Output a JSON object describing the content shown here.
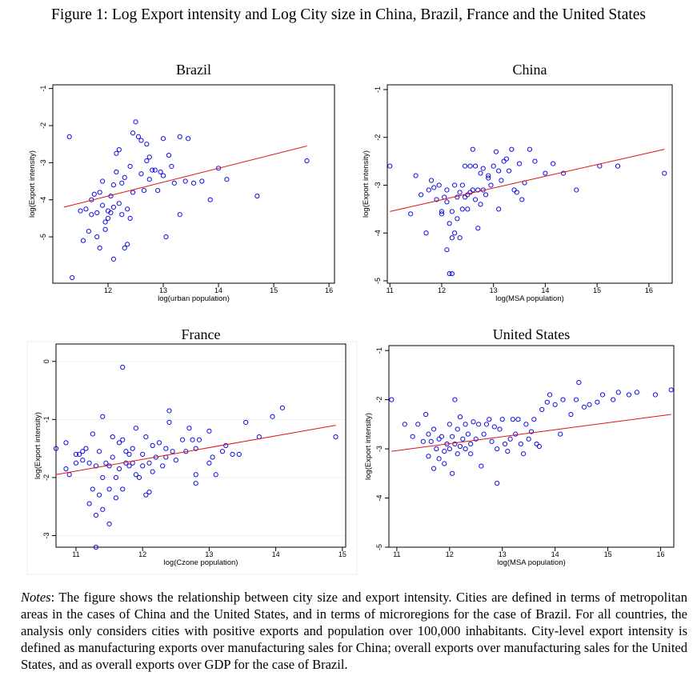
{
  "figure": {
    "title": "Figure 1: Log Export intensity and Log City size in China, Brazil, France and the United States",
    "notes_label": "Notes",
    "notes_text": ": The figure shows the relationship between city size and export intensity. Cities are defined in terms of metropolitan areas in the cases of China and the United States, and in terms of microregions for the case of Brazil. For all countries, the analysis only considers cities with positive exports and population over 100,000 inhabitants. City-level export intensity is defined as manufacturing exports over manufacturing sales for China; overall exports over manufacturing sales for the United States, and as overall exports over GDP for the case of Brazil."
  },
  "colors": {
    "points": "#1010e0",
    "fit_line": "#e01010",
    "frame": "#000000",
    "grid": "#eaf0f0"
  },
  "chart_data": [
    {
      "type": "scatter",
      "title": "Brazil",
      "xlabel": "log(urban population)",
      "ylabel": "log(Export intensity)",
      "xlim": [
        11.0,
        16.1
      ],
      "ylim": [
        -6.25,
        -0.9
      ],
      "xticks": [
        12,
        13,
        14,
        15,
        16
      ],
      "yticks": [
        -1,
        -2,
        -3,
        -4,
        -5
      ],
      "fit_line": {
        "x": [
          11.2,
          15.6
        ],
        "y": [
          -4.2,
          -2.55
        ]
      },
      "points": [
        [
          11.3,
          -2.3
        ],
        [
          11.35,
          -6.1
        ],
        [
          11.5,
          -4.3
        ],
        [
          11.55,
          -5.1
        ],
        [
          11.6,
          -4.25
        ],
        [
          11.65,
          -4.85
        ],
        [
          11.7,
          -4.0
        ],
        [
          11.7,
          -4.4
        ],
        [
          11.75,
          -3.85
        ],
        [
          11.8,
          -4.35
        ],
        [
          11.8,
          -5.0
        ],
        [
          11.85,
          -3.8
        ],
        [
          11.85,
          -5.3
        ],
        [
          11.9,
          -3.5
        ],
        [
          11.9,
          -4.15
        ],
        [
          11.95,
          -4.6
        ],
        [
          11.95,
          -4.8
        ],
        [
          12.0,
          -4.3
        ],
        [
          12.0,
          -4.5
        ],
        [
          12.05,
          -3.9
        ],
        [
          12.05,
          -4.35
        ],
        [
          12.1,
          -3.6
        ],
        [
          12.1,
          -4.2
        ],
        [
          12.1,
          -5.6
        ],
        [
          12.15,
          -2.75
        ],
        [
          12.15,
          -3.25
        ],
        [
          12.2,
          -2.65
        ],
        [
          12.2,
          -4.1
        ],
        [
          12.25,
          -3.55
        ],
        [
          12.25,
          -4.4
        ],
        [
          12.3,
          -3.4
        ],
        [
          12.3,
          -5.3
        ],
        [
          12.35,
          -4.25
        ],
        [
          12.35,
          -5.2
        ],
        [
          12.4,
          -4.5
        ],
        [
          12.4,
          -3.1
        ],
        [
          12.45,
          -2.2
        ],
        [
          12.45,
          -3.8
        ],
        [
          12.5,
          -1.9
        ],
        [
          12.55,
          -2.3
        ],
        [
          12.6,
          -2.4
        ],
        [
          12.6,
          -3.3
        ],
        [
          12.65,
          -3.75
        ],
        [
          12.7,
          -2.5
        ],
        [
          12.7,
          -2.95
        ],
        [
          12.75,
          -3.45
        ],
        [
          12.75,
          -2.85
        ],
        [
          12.8,
          -3.2
        ],
        [
          12.85,
          -3.2
        ],
        [
          12.9,
          -3.75
        ],
        [
          12.95,
          -3.25
        ],
        [
          13.0,
          -3.35
        ],
        [
          13.0,
          -2.35
        ],
        [
          13.05,
          -5.0
        ],
        [
          13.1,
          -2.8
        ],
        [
          13.15,
          -3.1
        ],
        [
          13.2,
          -3.55
        ],
        [
          13.3,
          -2.3
        ],
        [
          13.3,
          -4.4
        ],
        [
          13.4,
          -3.5
        ],
        [
          13.45,
          -2.35
        ],
        [
          13.55,
          -3.55
        ],
        [
          13.7,
          -3.5
        ],
        [
          13.85,
          -4.0
        ],
        [
          14.0,
          -3.15
        ],
        [
          14.15,
          -3.45
        ],
        [
          14.7,
          -3.9
        ],
        [
          15.6,
          -2.95
        ]
      ]
    },
    {
      "type": "scatter",
      "title": "China",
      "xlabel": "log(MSA population)",
      "ylabel": "log(Export intensity)",
      "xlim": [
        10.95,
        16.45
      ],
      "ylim": [
        -5.05,
        -0.9
      ],
      "xticks": [
        11,
        12,
        13,
        14,
        15,
        16
      ],
      "yticks": [
        -1,
        -2,
        -3,
        -4,
        -5
      ],
      "fit_line": {
        "x": [
          11.0,
          16.3
        ],
        "y": [
          -3.55,
          -2.25
        ]
      },
      "points": [
        [
          11.0,
          -2.6
        ],
        [
          11.4,
          -3.6
        ],
        [
          11.5,
          -2.8
        ],
        [
          11.6,
          -3.2
        ],
        [
          11.7,
          -4.0
        ],
        [
          11.75,
          -3.1
        ],
        [
          11.8,
          -2.9
        ],
        [
          11.85,
          -3.05
        ],
        [
          11.9,
          -3.3
        ],
        [
          11.95,
          -3.0
        ],
        [
          12.0,
          -3.6
        ],
        [
          12.0,
          -3.55
        ],
        [
          12.05,
          -3.25
        ],
        [
          12.1,
          -3.1
        ],
        [
          12.1,
          -3.35
        ],
        [
          12.1,
          -4.35
        ],
        [
          12.15,
          -3.8
        ],
        [
          12.15,
          -4.85
        ],
        [
          12.2,
          -3.55
        ],
        [
          12.2,
          -4.1
        ],
        [
          12.2,
          -4.85
        ],
        [
          12.25,
          -3.0
        ],
        [
          12.25,
          -4.0
        ],
        [
          12.3,
          -3.25
        ],
        [
          12.3,
          -3.7
        ],
        [
          12.35,
          -3.15
        ],
        [
          12.35,
          -4.1
        ],
        [
          12.4,
          -3.0
        ],
        [
          12.4,
          -3.5
        ],
        [
          12.45,
          -2.6
        ],
        [
          12.45,
          -3.25
        ],
        [
          12.5,
          -3.5
        ],
        [
          12.5,
          -3.2
        ],
        [
          12.55,
          -3.15
        ],
        [
          12.55,
          -2.6
        ],
        [
          12.6,
          -3.1
        ],
        [
          12.6,
          -2.25
        ],
        [
          12.65,
          -2.6
        ],
        [
          12.65,
          -3.3
        ],
        [
          12.7,
          -3.1
        ],
        [
          12.7,
          -3.9
        ],
        [
          12.75,
          -2.75
        ],
        [
          12.75,
          -3.4
        ],
        [
          12.8,
          -3.1
        ],
        [
          12.8,
          -2.65
        ],
        [
          12.85,
          -3.2
        ],
        [
          12.9,
          -2.8
        ],
        [
          12.9,
          -2.85
        ],
        [
          12.95,
          -3.0
        ],
        [
          13.0,
          -2.6
        ],
        [
          13.05,
          -2.3
        ],
        [
          13.1,
          -2.7
        ],
        [
          13.1,
          -3.5
        ],
        [
          13.15,
          -2.9
        ],
        [
          13.2,
          -2.5
        ],
        [
          13.25,
          -2.45
        ],
        [
          13.3,
          -2.7
        ],
        [
          13.35,
          -2.25
        ],
        [
          13.4,
          -3.1
        ],
        [
          13.45,
          -3.15
        ],
        [
          13.5,
          -2.55
        ],
        [
          13.55,
          -3.3
        ],
        [
          13.6,
          -2.95
        ],
        [
          13.7,
          -2.25
        ],
        [
          13.8,
          -2.5
        ],
        [
          14.0,
          -2.75
        ],
        [
          14.15,
          -2.55
        ],
        [
          14.35,
          -2.75
        ],
        [
          14.6,
          -3.1
        ],
        [
          15.05,
          -2.6
        ],
        [
          15.4,
          -2.6
        ],
        [
          16.3,
          -2.75
        ]
      ]
    },
    {
      "type": "scatter",
      "title": "France",
      "xlabel": "log(Czone population)",
      "ylabel": "log(Export intensity)",
      "xlim": [
        10.7,
        15.05
      ],
      "ylim": [
        -3.2,
        0.3
      ],
      "xticks": [
        11,
        12,
        13,
        14,
        15
      ],
      "yticks": [
        0,
        -1,
        -2,
        -3
      ],
      "fit_line": {
        "x": [
          10.7,
          14.9
        ],
        "y": [
          -1.95,
          -1.1
        ]
      },
      "points": [
        [
          10.7,
          -1.5
        ],
        [
          10.85,
          -1.85
        ],
        [
          10.85,
          -1.4
        ],
        [
          10.9,
          -1.95
        ],
        [
          11.0,
          -1.6
        ],
        [
          11.0,
          -1.75
        ],
        [
          11.05,
          -1.6
        ],
        [
          11.1,
          -1.7
        ],
        [
          11.1,
          -1.55
        ],
        [
          11.15,
          -1.5
        ],
        [
          11.2,
          -2.45
        ],
        [
          11.2,
          -1.75
        ],
        [
          11.25,
          -1.25
        ],
        [
          11.25,
          -2.2
        ],
        [
          11.3,
          -1.8
        ],
        [
          11.3,
          -2.65
        ],
        [
          11.3,
          -3.2
        ],
        [
          11.35,
          -2.3
        ],
        [
          11.35,
          -1.55
        ],
        [
          11.4,
          -2.0
        ],
        [
          11.4,
          -2.55
        ],
        [
          11.4,
          -0.95
        ],
        [
          11.45,
          -1.75
        ],
        [
          11.5,
          -2.2
        ],
        [
          11.5,
          -1.8
        ],
        [
          11.5,
          -2.8
        ],
        [
          11.55,
          -1.65
        ],
        [
          11.55,
          -1.3
        ],
        [
          11.6,
          -2.35
        ],
        [
          11.6,
          -2.0
        ],
        [
          11.65,
          -1.4
        ],
        [
          11.65,
          -1.85
        ],
        [
          11.7,
          -2.2
        ],
        [
          11.7,
          -1.35
        ],
        [
          11.75,
          -1.75
        ],
        [
          11.75,
          -1.55
        ],
        [
          11.8,
          -1.8
        ],
        [
          11.8,
          -1.6
        ],
        [
          11.85,
          -1.5
        ],
        [
          11.85,
          -1.75
        ],
        [
          11.9,
          -1.15
        ],
        [
          11.9,
          -1.95
        ],
        [
          11.95,
          -2.0
        ],
        [
          12.0,
          -1.8
        ],
        [
          12.0,
          -1.6
        ],
        [
          12.05,
          -1.3
        ],
        [
          12.05,
          -2.3
        ],
        [
          12.1,
          -1.75
        ],
        [
          12.1,
          -2.25
        ],
        [
          12.15,
          -1.45
        ],
        [
          12.15,
          -1.9
        ],
        [
          12.2,
          -1.65
        ],
        [
          12.25,
          -1.4
        ],
        [
          12.3,
          -1.8
        ],
        [
          12.35,
          -1.65
        ],
        [
          12.4,
          -0.85
        ],
        [
          12.4,
          -1.05
        ],
        [
          12.45,
          -1.55
        ],
        [
          12.5,
          -1.7
        ],
        [
          12.6,
          -1.35
        ],
        [
          12.65,
          -1.55
        ],
        [
          12.7,
          -1.15
        ],
        [
          12.75,
          -1.35
        ],
        [
          12.8,
          -1.5
        ],
        [
          12.8,
          -1.95
        ],
        [
          12.85,
          -1.35
        ],
        [
          13.0,
          -1.2
        ],
        [
          13.0,
          -1.75
        ],
        [
          13.05,
          -1.65
        ],
        [
          13.1,
          -1.95
        ],
        [
          13.2,
          -1.55
        ],
        [
          13.35,
          -1.6
        ],
        [
          13.45,
          -1.6
        ],
        [
          13.55,
          -1.05
        ],
        [
          13.75,
          -1.3
        ],
        [
          13.95,
          -0.95
        ],
        [
          14.1,
          -0.8
        ],
        [
          14.9,
          -1.3
        ],
        [
          11.7,
          -0.1
        ],
        [
          12.8,
          -2.1
        ],
        [
          13.25,
          -1.45
        ],
        [
          12.35,
          -1.5
        ]
      ]
    },
    {
      "type": "scatter",
      "title": "United States",
      "xlabel": "log(MSA population)",
      "ylabel": "log(Export intensity)",
      "xlim": [
        10.85,
        16.25
      ],
      "ylim": [
        -5.0,
        -0.9
      ],
      "xticks": [
        11,
        12,
        13,
        14,
        15,
        16
      ],
      "yticks": [
        -1,
        -2,
        -3,
        -4,
        -5
      ],
      "fit_line": {
        "x": [
          10.9,
          16.2
        ],
        "y": [
          -3.05,
          -2.3
        ]
      },
      "points": [
        [
          10.9,
          -2.0
        ],
        [
          11.15,
          -2.5
        ],
        [
          11.3,
          -2.75
        ],
        [
          11.4,
          -2.5
        ],
        [
          11.5,
          -2.85
        ],
        [
          11.55,
          -2.3
        ],
        [
          11.6,
          -2.7
        ],
        [
          11.6,
          -3.15
        ],
        [
          11.65,
          -2.85
        ],
        [
          11.7,
          -2.6
        ],
        [
          11.7,
          -3.4
        ],
        [
          11.75,
          -3.0
        ],
        [
          11.8,
          -3.2
        ],
        [
          11.8,
          -2.8
        ],
        [
          11.85,
          -2.75
        ],
        [
          11.9,
          -3.05
        ],
        [
          11.9,
          -3.3
        ],
        [
          11.95,
          -2.9
        ],
        [
          12.0,
          -3.0
        ],
        [
          12.0,
          -2.5
        ],
        [
          12.05,
          -2.75
        ],
        [
          12.05,
          -3.5
        ],
        [
          12.1,
          -2.9
        ],
        [
          12.1,
          -2.0
        ],
        [
          12.15,
          -3.1
        ],
        [
          12.15,
          -2.6
        ],
        [
          12.2,
          -2.35
        ],
        [
          12.2,
          -2.95
        ],
        [
          12.25,
          -2.8
        ],
        [
          12.3,
          -2.5
        ],
        [
          12.3,
          -3.0
        ],
        [
          12.35,
          -2.7
        ],
        [
          12.4,
          -3.1
        ],
        [
          12.4,
          -2.9
        ],
        [
          12.45,
          -2.45
        ],
        [
          12.5,
          -2.8
        ],
        [
          12.55,
          -2.5
        ],
        [
          12.6,
          -3.35
        ],
        [
          12.65,
          -2.7
        ],
        [
          12.7,
          -2.5
        ],
        [
          12.75,
          -2.4
        ],
        [
          12.8,
          -2.85
        ],
        [
          12.85,
          -2.55
        ],
        [
          12.9,
          -3.0
        ],
        [
          12.9,
          -3.7
        ],
        [
          12.95,
          -2.6
        ],
        [
          13.0,
          -2.4
        ],
        [
          13.05,
          -2.9
        ],
        [
          13.1,
          -3.05
        ],
        [
          13.15,
          -2.8
        ],
        [
          13.2,
          -2.4
        ],
        [
          13.25,
          -2.7
        ],
        [
          13.3,
          -2.4
        ],
        [
          13.35,
          -2.9
        ],
        [
          13.4,
          -3.1
        ],
        [
          13.45,
          -2.5
        ],
        [
          13.5,
          -2.8
        ],
        [
          13.55,
          -2.65
        ],
        [
          13.6,
          -2.4
        ],
        [
          13.65,
          -2.9
        ],
        [
          13.7,
          -2.95
        ],
        [
          13.75,
          -2.2
        ],
        [
          13.85,
          -2.05
        ],
        [
          13.9,
          -1.9
        ],
        [
          14.0,
          -2.1
        ],
        [
          14.1,
          -2.7
        ],
        [
          14.15,
          -2.0
        ],
        [
          14.3,
          -2.3
        ],
        [
          14.4,
          -2.0
        ],
        [
          14.45,
          -1.65
        ],
        [
          14.55,
          -2.15
        ],
        [
          14.65,
          -2.1
        ],
        [
          14.8,
          -2.05
        ],
        [
          14.9,
          -1.9
        ],
        [
          15.1,
          -2.0
        ],
        [
          15.2,
          -1.85
        ],
        [
          15.4,
          -1.9
        ],
        [
          15.55,
          -1.85
        ],
        [
          15.9,
          -1.9
        ],
        [
          16.2,
          -1.8
        ]
      ]
    }
  ]
}
